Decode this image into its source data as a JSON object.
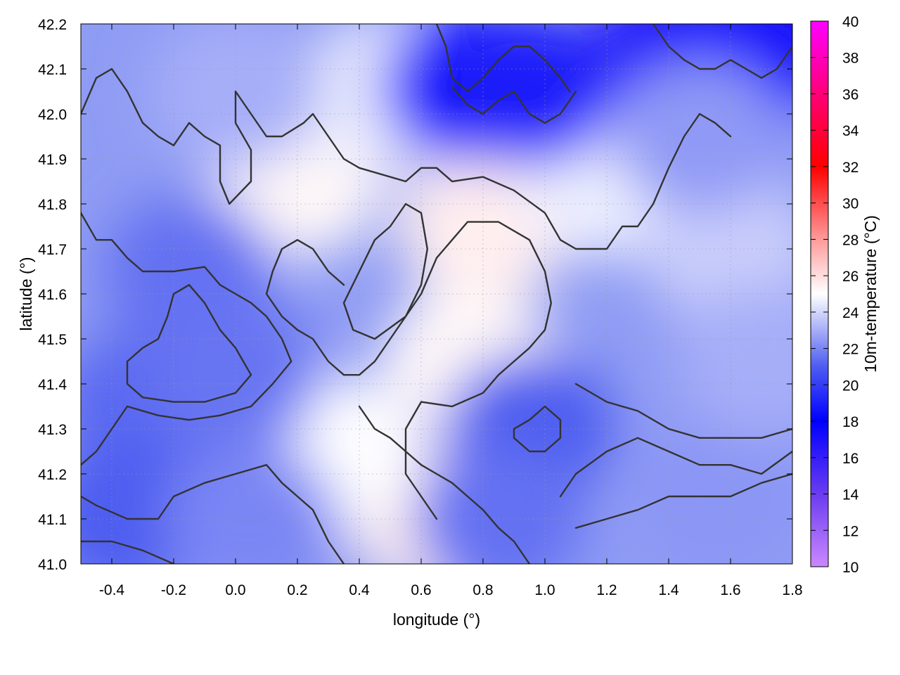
{
  "chart_data": {
    "type": "heatmap",
    "title": "",
    "xlabel": "longitude (°)",
    "ylabel": "latitude (°)",
    "colorbar_label": "10m-temperature (°C)",
    "xlim": [
      -0.5,
      1.8
    ],
    "ylim": [
      41.0,
      42.2
    ],
    "colorbar_range": [
      10,
      40
    ],
    "x_ticks": [
      -0.4,
      -0.2,
      0.0,
      0.2,
      0.4,
      0.6,
      0.8,
      1.0,
      1.2,
      1.4,
      1.6,
      1.8
    ],
    "x_tick_labels": [
      "-0.4",
      "-0.2",
      "0.0",
      "0.2",
      "0.4",
      "0.6",
      "0.8",
      "1.0",
      "1.2",
      "1.4",
      "1.6",
      "1.8"
    ],
    "y_ticks": [
      41.0,
      41.1,
      41.2,
      41.3,
      41.4,
      41.5,
      41.6,
      41.7,
      41.8,
      41.9,
      42.0,
      42.1,
      42.2
    ],
    "y_tick_labels": [
      "41.0",
      "41.1",
      "41.2",
      "41.3",
      "41.4",
      "41.5",
      "41.6",
      "41.7",
      "41.8",
      "41.9",
      "42.0",
      "42.1",
      "42.2"
    ],
    "colorbar_ticks": [
      10,
      12,
      14,
      16,
      18,
      20,
      22,
      24,
      26,
      28,
      30,
      32,
      34,
      36,
      38,
      40
    ],
    "colorbar_tick_labels": [
      "10",
      "12",
      "14",
      "16",
      "18",
      "20",
      "22",
      "24",
      "26",
      "28",
      "30",
      "32",
      "34",
      "36",
      "38",
      "40"
    ],
    "colormap_stops": [
      {
        "value": 10,
        "color": "#cc88ff"
      },
      {
        "value": 14,
        "color": "#6a3cf0"
      },
      {
        "value": 18,
        "color": "#0000ff"
      },
      {
        "value": 21,
        "color": "#4d5df0"
      },
      {
        "value": 25,
        "color": "#ffffff"
      },
      {
        "value": 28,
        "color": "#ff9a9a"
      },
      {
        "value": 32,
        "color": "#ff0000"
      },
      {
        "value": 36,
        "color": "#ff0077"
      },
      {
        "value": 40,
        "color": "#ff00ff"
      }
    ],
    "grid": true,
    "temperature_regions": [
      {
        "lon": 0.8,
        "lat": 41.75,
        "temp": 25.5
      },
      {
        "lon": 0.75,
        "lat": 41.45,
        "temp": 25.2
      },
      {
        "lon": 0.65,
        "lat": 41.1,
        "temp": 25.5
      },
      {
        "lon": 0.2,
        "lat": 41.85,
        "temp": 25.2
      },
      {
        "lon": 0.3,
        "lat": 41.25,
        "temp": 25.0
      },
      {
        "lon": 0.5,
        "lat": 42.05,
        "temp": 24.5
      },
      {
        "lon": 1.2,
        "lat": 41.85,
        "temp": 24.6
      },
      {
        "lon": 1.6,
        "lat": 41.7,
        "temp": 23.8
      },
      {
        "lon": -0.15,
        "lat": 41.65,
        "temp": 21.5
      },
      {
        "lon": -0.3,
        "lat": 41.35,
        "temp": 21.3
      },
      {
        "lon": 0.0,
        "lat": 41.42,
        "temp": 21.6
      },
      {
        "lon": -0.35,
        "lat": 41.1,
        "temp": 21.0
      },
      {
        "lon": 0.05,
        "lat": 41.1,
        "temp": 22.0
      },
      {
        "lon": 1.55,
        "lat": 41.15,
        "temp": 22.4
      },
      {
        "lon": 1.7,
        "lat": 41.45,
        "temp": 23.0
      },
      {
        "lon": 0.75,
        "lat": 42.06,
        "temp": 18.5
      },
      {
        "lon": 0.95,
        "lat": 42.05,
        "temp": 19.0
      },
      {
        "lon": 1.45,
        "lat": 42.15,
        "temp": 17.0
      },
      {
        "lon": 1.7,
        "lat": 42.15,
        "temp": 17.2
      },
      {
        "lon": 0.95,
        "lat": 41.3,
        "temp": 21.0
      },
      {
        "lon": 0.85,
        "lat": 41.1,
        "temp": 21.5
      },
      {
        "lon": 1.5,
        "lat": 41.95,
        "temp": 22.5
      },
      {
        "lon": 0.0,
        "lat": 42.05,
        "temp": 23.0
      }
    ],
    "contour_lines": [
      [
        [
          -0.5,
          42.0
        ],
        [
          -0.45,
          42.08
        ],
        [
          -0.4,
          42.1
        ],
        [
          -0.35,
          42.05
        ],
        [
          -0.3,
          41.98
        ],
        [
          -0.25,
          41.95
        ],
        [
          -0.2,
          41.93
        ],
        [
          -0.15,
          41.98
        ],
        [
          -0.1,
          41.95
        ],
        [
          -0.05,
          41.93
        ],
        [
          -0.05,
          41.85
        ],
        [
          -0.02,
          41.8
        ],
        [
          0.05,
          41.85
        ],
        [
          0.05,
          41.92
        ],
        [
          0.0,
          41.98
        ],
        [
          0.0,
          42.05
        ],
        [
          0.05,
          42.0
        ],
        [
          0.1,
          41.95
        ],
        [
          0.15,
          41.95
        ],
        [
          0.22,
          41.98
        ],
        [
          0.25,
          42.0
        ],
        [
          0.3,
          41.95
        ],
        [
          0.35,
          41.9
        ],
        [
          0.4,
          41.88
        ],
        [
          0.55,
          41.85
        ],
        [
          0.6,
          41.88
        ],
        [
          0.65,
          41.88
        ],
        [
          0.7,
          41.85
        ],
        [
          0.8,
          41.86
        ],
        [
          0.9,
          41.83
        ],
        [
          1.0,
          41.78
        ],
        [
          1.05,
          41.72
        ],
        [
          1.1,
          41.7
        ],
        [
          1.2,
          41.7
        ],
        [
          1.25,
          41.75
        ],
        [
          1.3,
          41.75
        ],
        [
          1.35,
          41.8
        ],
        [
          1.4,
          41.88
        ],
        [
          1.45,
          41.95
        ],
        [
          1.5,
          42.0
        ],
        [
          1.55,
          41.98
        ],
        [
          1.6,
          41.95
        ]
      ],
      [
        [
          -0.5,
          41.78
        ],
        [
          -0.45,
          41.72
        ],
        [
          -0.4,
          41.72
        ],
        [
          -0.35,
          41.68
        ],
        [
          -0.3,
          41.65
        ],
        [
          -0.2,
          41.65
        ],
        [
          -0.1,
          41.66
        ],
        [
          -0.05,
          41.62
        ],
        [
          0.0,
          41.6
        ],
        [
          0.05,
          41.58
        ],
        [
          0.1,
          41.55
        ],
        [
          0.15,
          41.5
        ],
        [
          0.18,
          41.45
        ],
        [
          0.12,
          41.4
        ],
        [
          0.05,
          41.35
        ],
        [
          -0.05,
          41.33
        ],
        [
          -0.15,
          41.32
        ],
        [
          -0.25,
          41.33
        ],
        [
          -0.35,
          41.35
        ],
        [
          -0.4,
          41.3
        ],
        [
          -0.45,
          41.25
        ],
        [
          -0.5,
          41.22
        ]
      ],
      [
        [
          -0.2,
          41.6
        ],
        [
          -0.22,
          41.55
        ],
        [
          -0.25,
          41.5
        ],
        [
          -0.3,
          41.48
        ],
        [
          -0.35,
          41.45
        ],
        [
          -0.35,
          41.4
        ],
        [
          -0.3,
          41.37
        ],
        [
          -0.2,
          41.36
        ],
        [
          -0.1,
          41.36
        ],
        [
          0.0,
          41.38
        ],
        [
          0.05,
          41.42
        ],
        [
          0.0,
          41.48
        ],
        [
          -0.05,
          41.52
        ],
        [
          -0.1,
          41.58
        ],
        [
          -0.15,
          41.62
        ],
        [
          -0.2,
          41.6
        ]
      ],
      [
        [
          -0.5,
          41.15
        ],
        [
          -0.45,
          41.13
        ],
        [
          -0.35,
          41.1
        ],
        [
          -0.25,
          41.1
        ],
        [
          -0.2,
          41.15
        ],
        [
          -0.1,
          41.18
        ],
        [
          0.0,
          41.2
        ],
        [
          0.1,
          41.22
        ],
        [
          0.15,
          41.18
        ],
        [
          0.2,
          41.15
        ],
        [
          0.25,
          41.12
        ],
        [
          0.3,
          41.05
        ],
        [
          0.35,
          41.0
        ]
      ],
      [
        [
          -0.5,
          41.05
        ],
        [
          -0.4,
          41.05
        ],
        [
          -0.3,
          41.03
        ],
        [
          -0.2,
          41.0
        ]
      ],
      [
        [
          0.35,
          41.62
        ],
        [
          0.3,
          41.65
        ],
        [
          0.25,
          41.7
        ],
        [
          0.2,
          41.72
        ],
        [
          0.15,
          41.7
        ],
        [
          0.12,
          41.65
        ],
        [
          0.1,
          41.6
        ],
        [
          0.15,
          41.55
        ],
        [
          0.2,
          41.52
        ],
        [
          0.25,
          41.5
        ],
        [
          0.3,
          41.45
        ],
        [
          0.35,
          41.42
        ],
        [
          0.4,
          41.42
        ],
        [
          0.45,
          41.45
        ],
        [
          0.5,
          41.5
        ],
        [
          0.55,
          41.55
        ],
        [
          0.6,
          41.6
        ],
        [
          0.65,
          41.68
        ],
        [
          0.7,
          41.72
        ],
        [
          0.75,
          41.76
        ],
        [
          0.85,
          41.76
        ],
        [
          0.95,
          41.72
        ],
        [
          1.0,
          41.65
        ],
        [
          1.02,
          41.58
        ],
        [
          1.0,
          41.52
        ],
        [
          0.95,
          41.48
        ],
        [
          0.9,
          41.45
        ],
        [
          0.85,
          41.42
        ],
        [
          0.8,
          41.38
        ],
        [
          0.7,
          41.35
        ],
        [
          0.6,
          41.36
        ],
        [
          0.55,
          41.3
        ],
        [
          0.55,
          41.2
        ],
        [
          0.6,
          41.15
        ],
        [
          0.65,
          41.1
        ]
      ],
      [
        [
          0.55,
          41.8
        ],
        [
          0.5,
          41.75
        ],
        [
          0.45,
          41.72
        ],
        [
          0.4,
          41.65
        ],
        [
          0.35,
          41.58
        ],
        [
          0.38,
          41.52
        ],
        [
          0.45,
          41.5
        ],
        [
          0.55,
          41.55
        ],
        [
          0.6,
          41.62
        ],
        [
          0.62,
          41.7
        ],
        [
          0.6,
          41.78
        ],
        [
          0.55,
          41.8
        ]
      ],
      [
        [
          0.9,
          41.3
        ],
        [
          0.95,
          41.32
        ],
        [
          1.0,
          41.35
        ],
        [
          1.05,
          41.32
        ],
        [
          1.05,
          41.28
        ],
        [
          1.0,
          41.25
        ],
        [
          0.95,
          41.25
        ],
        [
          0.9,
          41.28
        ],
        [
          0.9,
          41.3
        ]
      ],
      [
        [
          1.1,
          41.4
        ],
        [
          1.2,
          41.36
        ],
        [
          1.3,
          41.34
        ],
        [
          1.4,
          41.3
        ],
        [
          1.5,
          41.28
        ],
        [
          1.6,
          41.28
        ],
        [
          1.7,
          41.28
        ],
        [
          1.8,
          41.3
        ]
      ],
      [
        [
          1.05,
          41.15
        ],
        [
          1.1,
          41.2
        ],
        [
          1.2,
          41.25
        ],
        [
          1.3,
          41.28
        ],
        [
          1.4,
          41.25
        ],
        [
          1.5,
          41.22
        ],
        [
          1.6,
          41.22
        ],
        [
          1.7,
          41.2
        ],
        [
          1.8,
          41.25
        ]
      ],
      [
        [
          1.1,
          41.08
        ],
        [
          1.2,
          41.1
        ],
        [
          1.3,
          41.12
        ],
        [
          1.4,
          41.15
        ],
        [
          1.5,
          41.15
        ],
        [
          1.6,
          41.15
        ],
        [
          1.7,
          41.18
        ],
        [
          1.8,
          41.2
        ]
      ],
      [
        [
          0.65,
          42.2
        ],
        [
          0.68,
          42.15
        ],
        [
          0.7,
          42.08
        ],
        [
          0.75,
          42.05
        ],
        [
          0.8,
          42.08
        ],
        [
          0.85,
          42.12
        ],
        [
          0.9,
          42.15
        ],
        [
          0.95,
          42.15
        ],
        [
          1.0,
          42.12
        ],
        [
          1.05,
          42.08
        ],
        [
          1.08,
          42.05
        ]
      ],
      [
        [
          0.7,
          42.06
        ],
        [
          0.75,
          42.02
        ],
        [
          0.8,
          42.0
        ],
        [
          0.85,
          42.03
        ],
        [
          0.9,
          42.05
        ],
        [
          0.95,
          42.0
        ],
        [
          1.0,
          41.98
        ],
        [
          1.05,
          42.0
        ],
        [
          1.1,
          42.05
        ]
      ],
      [
        [
          1.35,
          42.2
        ],
        [
          1.4,
          42.15
        ],
        [
          1.45,
          42.12
        ],
        [
          1.5,
          42.1
        ],
        [
          1.55,
          42.1
        ],
        [
          1.6,
          42.12
        ],
        [
          1.65,
          42.1
        ],
        [
          1.7,
          42.08
        ],
        [
          1.75,
          42.1
        ],
        [
          1.8,
          42.15
        ]
      ],
      [
        [
          0.4,
          41.35
        ],
        [
          0.45,
          41.3
        ],
        [
          0.5,
          41.28
        ],
        [
          0.55,
          41.25
        ],
        [
          0.6,
          41.22
        ],
        [
          0.65,
          41.2
        ],
        [
          0.7,
          41.18
        ],
        [
          0.75,
          41.15
        ],
        [
          0.8,
          41.12
        ],
        [
          0.85,
          41.08
        ],
        [
          0.9,
          41.05
        ],
        [
          0.95,
          41.0
        ]
      ]
    ]
  }
}
